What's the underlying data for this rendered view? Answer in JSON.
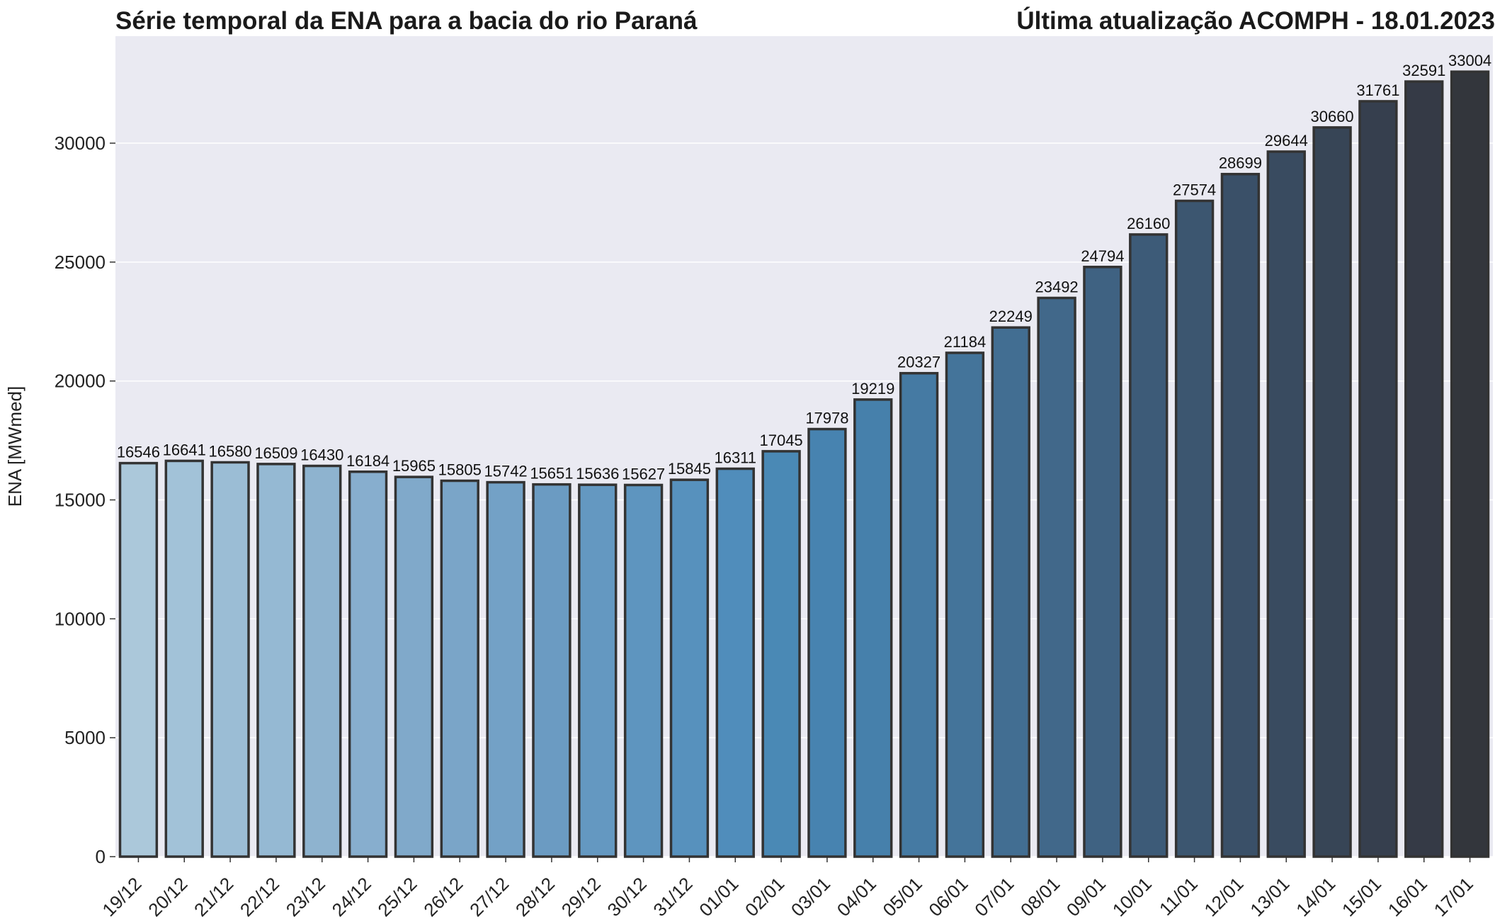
{
  "header": {
    "title_left": "Série temporal da ENA para a bacia do rio Paraná",
    "title_right": "Última atualização ACOMPH - 18.01.2023"
  },
  "chart_data": {
    "type": "bar",
    "title": "Série temporal da ENA para a bacia do rio Paraná",
    "subtitle": "Última atualização ACOMPH - 18.01.2023",
    "xlabel": "",
    "ylabel": "ENA [MWmed]",
    "ylim": [
      0,
      34500
    ],
    "yticks": [
      0,
      5000,
      10000,
      15000,
      20000,
      25000,
      30000
    ],
    "grid": true,
    "categories": [
      "19/12",
      "20/12",
      "21/12",
      "22/12",
      "23/12",
      "24/12",
      "25/12",
      "26/12",
      "27/12",
      "28/12",
      "29/12",
      "30/12",
      "31/12",
      "01/01",
      "02/01",
      "03/01",
      "04/01",
      "05/01",
      "06/01",
      "07/01",
      "08/01",
      "09/01",
      "10/01",
      "11/01",
      "12/01",
      "13/01",
      "14/01",
      "15/01",
      "16/01",
      "17/01"
    ],
    "values": [
      16546,
      16641,
      16580,
      16509,
      16430,
      16184,
      15965,
      15805,
      15742,
      15651,
      15636,
      15627,
      15845,
      16311,
      17045,
      17978,
      19219,
      20327,
      21184,
      22249,
      23492,
      24794,
      26160,
      27574,
      28699,
      29644,
      30660,
      31761,
      32591,
      33004
    ],
    "colors": [
      "#abc8da",
      "#a2c2d8",
      "#9bbdd5",
      "#95b9d3",
      "#8eb3cf",
      "#87aece",
      "#80a9ca",
      "#7aa5c8",
      "#73a1c6",
      "#6b9bc2",
      "#6498c1",
      "#5e95bf",
      "#5791bd",
      "#508dbb",
      "#4a89b5",
      "#4783b0",
      "#4680ab",
      "#457aa3",
      "#44749a",
      "#426e92",
      "#41688a",
      "#3f6282",
      "#3d5b78",
      "#3c5670",
      "#3a5068",
      "#394b60",
      "#374556",
      "#363f4e",
      "#353a46",
      "#33363c"
    ],
    "bar_edge_color": "#333333",
    "background": "#eaeaf2"
  }
}
